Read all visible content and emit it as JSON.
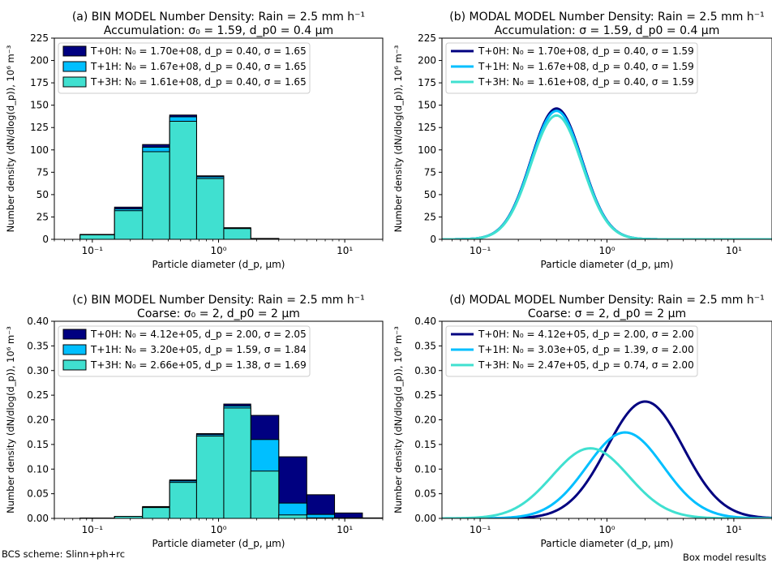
{
  "footer": {
    "left": "BCS scheme: Slinn+ph+rc",
    "right": "Box model results"
  },
  "colors": {
    "t0": "#000080",
    "t1": "#00bfff",
    "t3": "#40e0d0",
    "edge": "#000000",
    "spine": "#000000"
  },
  "chart_data": [
    {
      "id": "a",
      "type": "bar",
      "title_line1": "(a) BIN MODEL Number Density: Rain = 2.5 mm h⁻¹",
      "title_line2": "Accumulation: σ₀ = 1.59, d_p0 = 0.4 μm",
      "xlabel": "Particle diameter (d_p, μm)",
      "ylabel": "Number density (dN/dlog(d_p)), 10⁶ m⁻³",
      "xscale": "log",
      "xlim": [
        0.05,
        20
      ],
      "ylim": [
        0,
        225
      ],
      "yticks": [
        0,
        25,
        50,
        75,
        100,
        125,
        150,
        175,
        200,
        225
      ],
      "ytick_labels": [
        "0",
        "25",
        "50",
        "75",
        "100",
        "125",
        "150",
        "175",
        "200",
        "225"
      ],
      "xticks": [
        0.1,
        1,
        10
      ],
      "xtick_labels": [
        "10⁻¹",
        "10⁰",
        "10¹"
      ],
      "legend_position": "top-left",
      "bin_edges": [
        0.05,
        0.08,
        0.15,
        0.25,
        0.41,
        0.67,
        1.1,
        1.8,
        3.0,
        5.0,
        8.3,
        13.8,
        20
      ],
      "series": [
        {
          "name": "T+0H: N₀ = 1.70e+08, d_p = 0.40, σ = 1.65",
          "values": [
            0,
            5.5,
            36,
            106,
            139,
            71,
            13,
            1,
            0,
            0,
            0,
            0
          ]
        },
        {
          "name": "T+1H: N₀ = 1.67e+08, d_p = 0.40, σ = 1.65",
          "values": [
            0,
            5.2,
            34,
            103,
            137,
            70,
            12.5,
            0.8,
            0,
            0,
            0,
            0
          ]
        },
        {
          "name": "T+3H: N₀ = 1.61e+08, d_p = 0.40, σ = 1.65",
          "values": [
            0,
            5.0,
            32,
            98,
            132,
            68,
            12,
            0.7,
            0,
            0,
            0,
            0
          ]
        }
      ]
    },
    {
      "id": "b",
      "type": "line",
      "title_line1": "(b) MODAL MODEL Number Density: Rain = 2.5 mm h⁻¹",
      "title_line2": "Accumulation: σ = 1.59, d_p0 = 0.4 μm",
      "xlabel": "Particle diameter (d_p, μm)",
      "ylabel": "Number density (dN/dlog(d_p)), 10⁶ m⁻³",
      "xscale": "log",
      "xlim": [
        0.05,
        20
      ],
      "ylim": [
        0,
        225
      ],
      "yticks": [
        0,
        25,
        50,
        75,
        100,
        125,
        150,
        175,
        200,
        225
      ],
      "ytick_labels": [
        "0",
        "25",
        "50",
        "75",
        "100",
        "125",
        "150",
        "175",
        "200",
        "225"
      ],
      "xticks": [
        0.1,
        1,
        10
      ],
      "xtick_labels": [
        "10⁻¹",
        "10⁰",
        "10¹"
      ],
      "legend_position": "top-left",
      "series": [
        {
          "name": "T+0H: N₀ = 1.70e+08, d_p = 0.40, σ = 1.59",
          "N0": 170,
          "dp": 0.4,
          "sigma": 1.59
        },
        {
          "name": "T+1H: N₀ = 1.67e+08, d_p = 0.40, σ = 1.59",
          "N0": 167,
          "dp": 0.4,
          "sigma": 1.59
        },
        {
          "name": "T+3H: N₀ = 1.61e+08, d_p = 0.40, σ = 1.59",
          "N0": 161,
          "dp": 0.4,
          "sigma": 1.59
        }
      ]
    },
    {
      "id": "c",
      "type": "bar",
      "title_line1": "(c) BIN MODEL Number Density: Rain = 2.5 mm h⁻¹",
      "title_line2": "Coarse: σ₀ = 2, d_p0 = 2 μm",
      "xlabel": "Particle diameter (d_p, μm)",
      "ylabel": "Number density (dN/dlog(d_p)), 10⁶ m⁻³",
      "xscale": "log",
      "xlim": [
        0.05,
        20
      ],
      "ylim": [
        0,
        0.4
      ],
      "yticks": [
        0,
        0.05,
        0.1,
        0.15,
        0.2,
        0.25,
        0.3,
        0.35,
        0.4
      ],
      "ytick_labels": [
        "0.00",
        "0.05",
        "0.10",
        "0.15",
        "0.20",
        "0.25",
        "0.30",
        "0.35",
        "0.40"
      ],
      "xticks": [
        0.1,
        1,
        10
      ],
      "xtick_labels": [
        "10⁻¹",
        "10⁰",
        "10¹"
      ],
      "legend_position": "top-left",
      "bin_edges": [
        0.05,
        0.08,
        0.15,
        0.25,
        0.41,
        0.67,
        1.1,
        1.8,
        3.0,
        5.0,
        8.3,
        13.8,
        20
      ],
      "series": [
        {
          "name": "T+0H: N₀ = 4.12e+05, d_p = 2.00, σ = 2.05",
          "values": [
            0,
            0.0005,
            0.004,
            0.024,
            0.078,
            0.172,
            0.232,
            0.209,
            0.125,
            0.048,
            0.011,
            0.001
          ]
        },
        {
          "name": "T+1H: N₀ = 3.20e+05, d_p = 1.59, σ = 1.84",
          "values": [
            0,
            0.0005,
            0.004,
            0.023,
            0.076,
            0.17,
            0.228,
            0.16,
            0.031,
            0.008,
            0.001,
            0
          ]
        },
        {
          "name": "T+3H: N₀ = 2.66e+05, d_p = 1.38, σ = 1.69",
          "values": [
            0,
            0.0004,
            0.004,
            0.022,
            0.073,
            0.167,
            0.224,
            0.096,
            0.007,
            0.001,
            0,
            0
          ]
        }
      ]
    },
    {
      "id": "d",
      "type": "line",
      "title_line1": "(d) MODAL MODEL Number Density: Rain = 2.5 mm h⁻¹",
      "title_line2": "Coarse: σ = 2, d_p0 = 2 μm",
      "xlabel": "Particle diameter (d_p, μm)",
      "ylabel": "Number density (dN/dlog(d_p)), 10⁶ m⁻³",
      "xscale": "log",
      "xlim": [
        0.05,
        20
      ],
      "ylim": [
        0,
        0.4
      ],
      "yticks": [
        0,
        0.05,
        0.1,
        0.15,
        0.2,
        0.25,
        0.3,
        0.35,
        0.4
      ],
      "ytick_labels": [
        "0.00",
        "0.05",
        "0.10",
        "0.15",
        "0.20",
        "0.25",
        "0.30",
        "0.35",
        "0.40"
      ],
      "xticks": [
        0.1,
        1,
        10
      ],
      "xtick_labels": [
        "10⁻¹",
        "10⁰",
        "10¹"
      ],
      "legend_position": "top-left",
      "series": [
        {
          "name": "T+0H: N₀ = 4.12e+05, d_p = 2.00, σ = 2.00",
          "N0": 0.412,
          "dp": 2.0,
          "sigma": 2.0
        },
        {
          "name": "T+1H: N₀ = 3.03e+05, d_p = 1.39, σ = 2.00",
          "N0": 0.303,
          "dp": 1.39,
          "sigma": 2.0
        },
        {
          "name": "T+3H: N₀ = 2.47e+05, d_p = 0.74, σ = 2.00",
          "N0": 0.247,
          "dp": 0.74,
          "sigma": 2.0
        }
      ]
    }
  ]
}
